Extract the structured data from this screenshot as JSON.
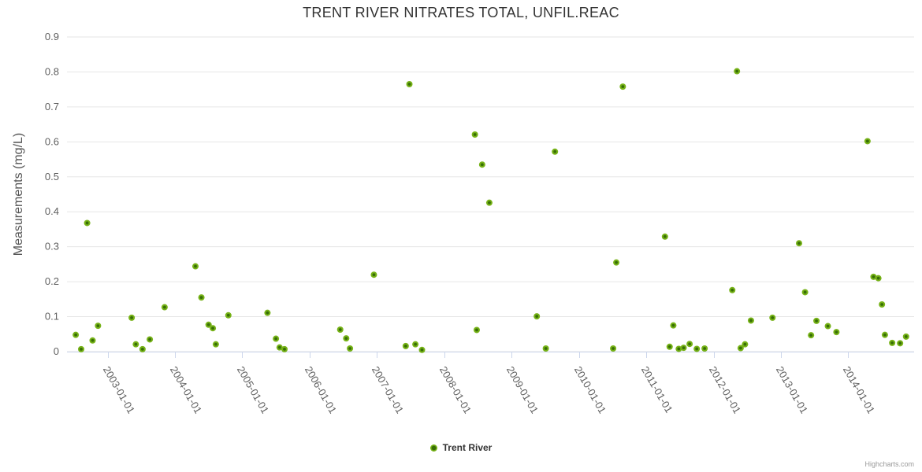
{
  "chart": {
    "title": "TRENT RIVER NITRATES TOTAL, UNFIL.REAC",
    "credits_label": "Highcharts.com"
  },
  "colors": {
    "marker_outer": "#76b217",
    "marker_inner": "#376e06",
    "gridline": "#e6e6e6",
    "axis_line": "#ccd6eb",
    "tick_label": "#606060",
    "title_text": "#333333"
  },
  "chart_data": {
    "type": "scatter",
    "title": "TRENT RIVER NITRATES TOTAL, UNFIL.REAC",
    "xlabel": "",
    "ylabel": "Measurements (mg/L)",
    "ylim": [
      0,
      0.9
    ],
    "grid": "horizontal",
    "legend_position": "bottom-center",
    "y_ticks": [
      {
        "label": "0",
        "value": 0
      },
      {
        "label": "0.1",
        "value": 0.1
      },
      {
        "label": "0.2",
        "value": 0.2
      },
      {
        "label": "0.3",
        "value": 0.3
      },
      {
        "label": "0.4",
        "value": 0.4
      },
      {
        "label": "0.5",
        "value": 0.5
      },
      {
        "label": "0.6",
        "value": 0.6
      },
      {
        "label": "0.7",
        "value": 0.7
      },
      {
        "label": "0.8",
        "value": 0.8
      },
      {
        "label": "0.9",
        "value": 0.9
      }
    ],
    "x_ticks": [
      "2003-01-01",
      "2004-01-01",
      "2005-01-01",
      "2006-01-01",
      "2007-01-01",
      "2008-01-01",
      "2009-01-01",
      "2010-01-01",
      "2011-01-01",
      "2012-01-01",
      "2013-01-01",
      "2014-01-01"
    ],
    "series": [
      {
        "name": "Trent River",
        "color": "#76b217",
        "data": [
          [
            "2002-07-11",
            0.048
          ],
          [
            "2002-08-10",
            0.007
          ],
          [
            "2002-09-12",
            0.368
          ],
          [
            "2002-10-11",
            0.032
          ],
          [
            "2002-11-10",
            0.074
          ],
          [
            "2003-05-10",
            0.097
          ],
          [
            "2003-06-02",
            0.021
          ],
          [
            "2003-07-08",
            0.007
          ],
          [
            "2003-08-17",
            0.035
          ],
          [
            "2003-11-06",
            0.127
          ],
          [
            "2004-04-21",
            0.244
          ],
          [
            "2004-05-23",
            0.155
          ],
          [
            "2004-07-01",
            0.077
          ],
          [
            "2004-07-24",
            0.067
          ],
          [
            "2004-08-10",
            0.021
          ],
          [
            "2004-10-17",
            0.104
          ],
          [
            "2005-05-16",
            0.111
          ],
          [
            "2005-07-01",
            0.037
          ],
          [
            "2005-07-21",
            0.012
          ],
          [
            "2005-08-17",
            0.007
          ],
          [
            "2006-06-15",
            0.063
          ],
          [
            "2006-07-17",
            0.038
          ],
          [
            "2006-08-07",
            0.009
          ],
          [
            "2006-12-15",
            0.22
          ],
          [
            "2007-06-05",
            0.016
          ],
          [
            "2007-06-25",
            0.765
          ],
          [
            "2007-07-27",
            0.021
          ],
          [
            "2007-09-02",
            0.005
          ],
          [
            "2008-06-15",
            0.621
          ],
          [
            "2008-06-25",
            0.062
          ],
          [
            "2008-07-24",
            0.535
          ],
          [
            "2008-09-02",
            0.426
          ],
          [
            "2009-05-16",
            0.101
          ],
          [
            "2009-07-04",
            0.009
          ],
          [
            "2009-08-23",
            0.572
          ],
          [
            "2010-07-04",
            0.009
          ],
          [
            "2010-07-21",
            0.255
          ],
          [
            "2010-08-26",
            0.758
          ],
          [
            "2011-04-11",
            0.329
          ],
          [
            "2011-05-06",
            0.014
          ],
          [
            "2011-05-26",
            0.075
          ],
          [
            "2011-06-25",
            0.008
          ],
          [
            "2011-07-21",
            0.011
          ],
          [
            "2011-08-23",
            0.022
          ],
          [
            "2011-10-01",
            0.008
          ],
          [
            "2011-11-13",
            0.009
          ],
          [
            "2012-04-11",
            0.176
          ],
          [
            "2012-05-06",
            0.802
          ],
          [
            "2012-05-26",
            0.01
          ],
          [
            "2012-06-19",
            0.021
          ],
          [
            "2012-07-21",
            0.089
          ],
          [
            "2012-11-16",
            0.097
          ],
          [
            "2013-04-08",
            0.31
          ],
          [
            "2013-05-10",
            0.17
          ],
          [
            "2013-06-12",
            0.047
          ],
          [
            "2013-07-11",
            0.088
          ],
          [
            "2013-09-12",
            0.073
          ],
          [
            "2013-10-28",
            0.056
          ],
          [
            "2014-04-14",
            0.602
          ],
          [
            "2014-05-16",
            0.214
          ],
          [
            "2014-06-12",
            0.21
          ],
          [
            "2014-07-01",
            0.135
          ],
          [
            "2014-07-17",
            0.048
          ],
          [
            "2014-08-26",
            0.025
          ],
          [
            "2014-10-08",
            0.024
          ],
          [
            "2014-11-10",
            0.043
          ]
        ]
      }
    ]
  }
}
